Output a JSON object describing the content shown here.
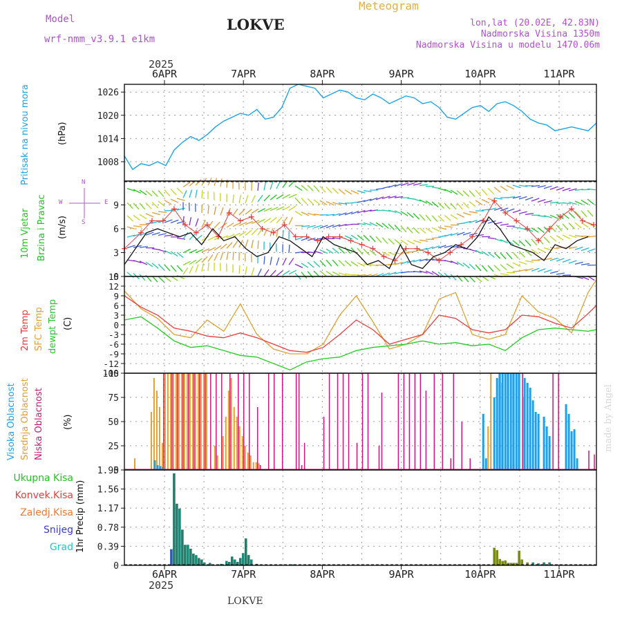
{
  "header": {
    "model_label": "Model",
    "model_name": "wrf-nmm_v3.9.1 e1km",
    "title": "LOKVE",
    "product": "Meteogram",
    "lonlat": "lon,lat (20.02E, 42.83N)",
    "elevation": "Nadmorska Visina 1350m",
    "model_elevation": "Nadmorska Visina u modelu 1470.06m",
    "watermark": "made by Angel",
    "footer": "LOKVE"
  },
  "colors": {
    "pressure": "#1aa3e6",
    "wind_label": "#1fc41f",
    "temp2m": "#e83c3c",
    "sfc": "#e0a030",
    "dew": "#22cc22",
    "high_cloud": "#1fa0e6",
    "mid_cloud": "#e0a030",
    "low_cloud": "#c8187a",
    "rain_total": "#1fc41f",
    "rain_conv": "#e83c3c",
    "freezing": "#f07830",
    "snow": "#3a3ad0",
    "hail": "#20c8c8",
    "precip_bar": "#1a8a7a",
    "precip_bar2": "#7a8a1a"
  },
  "time_axis": {
    "top_year": "2025",
    "bottom_year": "2025",
    "dates": [
      "6APR",
      "7APR",
      "8APR",
      "9APR",
      "10APR",
      "11APR"
    ]
  },
  "panels": {
    "pressure": {
      "label": "Pritisak na nivou mora",
      "unit": "(hPa)"
    },
    "wind": {
      "label1": "10m Vjetar",
      "label2": "Brzina i Pravac",
      "unit": "(m/s)",
      "compass_w": "W",
      "compass_e": "E",
      "compass_n": "N",
      "compass_s": "S"
    },
    "temp": {
      "label1": "2m Temp",
      "label2": "SFC Temp",
      "label3": "dewpt Temp",
      "unit": "(C)"
    },
    "cloud": {
      "label1": "Visoka Oblacnost",
      "label2": "Srednja Oblacnost",
      "label3": "Niska Oblacnost",
      "unit": "(%)"
    },
    "precip": {
      "legend": [
        "Ukupna Kisa",
        "Konvek.Kisa",
        "Zaledj.Kisa",
        "Snijeg",
        "Grad"
      ],
      "unit": "1hr Precip (mm)"
    }
  },
  "chart_data": [
    {
      "type": "line",
      "title": "Pritisak na nivou mora",
      "ylabel": "(hPa)",
      "ylim": [
        1003,
        1028
      ],
      "yticks": [
        1008,
        1014,
        1020,
        1026
      ],
      "x_hours": [
        0,
        3,
        6,
        9,
        12,
        15,
        18,
        21,
        24,
        27,
        30,
        33,
        36,
        39,
        42,
        45,
        48,
        51,
        54,
        57,
        60,
        63,
        66,
        69,
        72,
        75,
        78,
        81,
        84,
        87,
        90,
        93,
        96,
        99,
        102,
        105,
        108,
        111,
        114,
        117,
        120,
        123,
        126,
        129,
        132,
        135,
        138,
        141,
        144,
        147,
        150,
        153,
        156,
        159,
        162,
        165,
        168,
        171
      ],
      "values": [
        1009.5,
        1006,
        1007.5,
        1007,
        1008,
        1007,
        1011,
        1013,
        1014.5,
        1013.5,
        1015,
        1017,
        1018.5,
        1019.5,
        1020.5,
        1020,
        1021.5,
        1019,
        1019.5,
        1022,
        1027,
        1028,
        1027.5,
        1027,
        1024.5,
        1025.5,
        1026.5,
        1026,
        1024.5,
        1024,
        1025.5,
        1024.5,
        1023,
        1024,
        1025,
        1024.5,
        1023,
        1023.5,
        1022,
        1019.5,
        1019,
        1020.5,
        1022,
        1022.5,
        1021,
        1023,
        1023.5,
        1022.5,
        1021,
        1019,
        1018,
        1017.5,
        1016,
        1016.5,
        1017,
        1016.5,
        1016,
        1018
      ]
    },
    {
      "type": "line",
      "title": "10m Vjetar Brzina i Pravac",
      "ylabel": "(m/s)",
      "ylim": [
        0,
        12
      ],
      "yticks": [
        0,
        3,
        6,
        9
      ],
      "series": [
        {
          "name": "speed",
          "x_hours": [
            0,
            4,
            8,
            12,
            16,
            20,
            24,
            28,
            32,
            36,
            40,
            44,
            48,
            52,
            56,
            60,
            64,
            68,
            72,
            76,
            80,
            84,
            88,
            92,
            96,
            100,
            104,
            108,
            112,
            116,
            120,
            124,
            128,
            132,
            136,
            140,
            144,
            148,
            152,
            156,
            160,
            164,
            168
          ],
          "values": [
            1.5,
            3.5,
            5.5,
            6.0,
            5.5,
            5.0,
            5.5,
            4.0,
            6.0,
            4.5,
            5.0,
            3.5,
            2.5,
            3.0,
            5.0,
            4.5,
            3.5,
            2.5,
            5.0,
            4.0,
            3.5,
            3.0,
            1.5,
            2.0,
            1.0,
            4.0,
            1.5,
            1.0,
            2.5,
            3.0,
            4.0,
            3.5,
            5.0,
            7.5,
            6.0,
            4.0,
            3.5,
            3.0,
            2.0,
            4.0,
            3.5,
            4.5,
            5.0
          ]
        },
        {
          "name": "gust",
          "x_hours": [
            0,
            6,
            10,
            14,
            18,
            22,
            26,
            30,
            34,
            38,
            42,
            46,
            50,
            54,
            58,
            62,
            66,
            70,
            74,
            78,
            82,
            86,
            90,
            94,
            98,
            102,
            106,
            110,
            114,
            118,
            122,
            126,
            130,
            134,
            138,
            142,
            146,
            150,
            154,
            158,
            162,
            166,
            170
          ],
          "values": [
            3.5,
            5.5,
            7.0,
            7.0,
            8.5,
            6.5,
            5.5,
            6.5,
            5.0,
            8.0,
            7.0,
            7.5,
            6.0,
            5.5,
            6.5,
            5.0,
            5.0,
            4.5,
            5.0,
            5.0,
            4.5,
            4.0,
            3.5,
            2.5,
            2.0,
            3.5,
            3.5,
            3.0,
            2.0,
            3.0,
            4.0,
            5.0,
            7.0,
            9.5,
            8.0,
            7.0,
            6.0,
            4.5,
            6.0,
            7.5,
            8.5,
            7.0,
            6.5
          ]
        }
      ]
    },
    {
      "type": "line",
      "title": "2m Temp / SFC Temp / dewpt Temp",
      "ylabel": "(C)",
      "ylim": [
        -15,
        15
      ],
      "yticks": [
        -15,
        -12,
        -9,
        -6,
        -3,
        0,
        3,
        6,
        9,
        12,
        15
      ],
      "series": [
        {
          "name": "2m Temp",
          "x_hours": [
            0,
            6,
            12,
            18,
            24,
            30,
            36,
            42,
            48,
            54,
            60,
            66,
            72,
            78,
            84,
            90,
            96,
            102,
            108,
            114,
            120,
            126,
            132,
            138,
            144,
            150,
            156,
            162,
            168,
            171
          ],
          "values": [
            9,
            5.5,
            3,
            -1,
            -2,
            -3.5,
            -4,
            -2.5,
            -4,
            -6,
            -8,
            -8.5,
            -7,
            -3,
            1.5,
            -1.5,
            -6,
            -4.5,
            -3,
            3,
            2,
            -1.5,
            -2.5,
            -1.5,
            3,
            2.5,
            0.5,
            -1,
            3.5,
            6
          ]
        },
        {
          "name": "SFC Temp",
          "x_hours": [
            0,
            6,
            12,
            18,
            24,
            30,
            36,
            42,
            48,
            54,
            60,
            66,
            72,
            78,
            84,
            90,
            96,
            102,
            108,
            114,
            120,
            126,
            132,
            138,
            144,
            150,
            156,
            162,
            168,
            171
          ],
          "values": [
            10.5,
            5,
            2,
            -3,
            -4,
            1.5,
            -2,
            6.5,
            -3,
            -7.5,
            -9,
            -9,
            -6,
            3,
            9,
            1,
            -7.5,
            -6,
            -3,
            8,
            10,
            -3,
            -4.5,
            -3,
            9,
            4,
            2,
            -2.5,
            10,
            14
          ]
        },
        {
          "name": "dewpt Temp",
          "x_hours": [
            0,
            6,
            12,
            18,
            24,
            30,
            36,
            42,
            48,
            54,
            60,
            66,
            72,
            78,
            84,
            90,
            96,
            102,
            108,
            114,
            120,
            126,
            132,
            138,
            144,
            150,
            156,
            162,
            168,
            171
          ],
          "values": [
            1.5,
            2.5,
            -1,
            -5,
            -7,
            -6.5,
            -8,
            -9.5,
            -10,
            -12,
            -14,
            -11.5,
            -10.5,
            -10,
            -8,
            -7,
            -6.5,
            -6,
            -5,
            -6,
            -5.5,
            -6.5,
            -6,
            -8,
            -4,
            -1.5,
            -1,
            -1.5,
            -2,
            -1.5
          ]
        }
      ]
    },
    {
      "type": "bar",
      "title": "Visoka / Srednja / Niska Oblacnost",
      "ylabel": "(%)",
      "ylim": [
        0,
        100
      ],
      "yticks": [
        0,
        25,
        50,
        75,
        100
      ],
      "series": [
        {
          "name": "Visoka Oblacnost",
          "x_hours": [
            11,
            12,
            13,
            14,
            130,
            131,
            134,
            135,
            136,
            137,
            138,
            139,
            140,
            141,
            142,
            143,
            145,
            146,
            147,
            148,
            149,
            150,
            152,
            153,
            154,
            160,
            161,
            162,
            163,
            164
          ],
          "values": [
            10,
            5,
            4,
            3,
            58,
            12,
            75,
            95,
            100,
            100,
            100,
            100,
            100,
            100,
            100,
            100,
            95,
            90,
            85,
            72,
            60,
            58,
            55,
            45,
            35,
            68,
            58,
            40,
            42,
            12
          ]
        },
        {
          "name": "Srednja Oblacnost",
          "x_hours": [
            4,
            10,
            11,
            12,
            13,
            14,
            15,
            16,
            17,
            18,
            19,
            20,
            21,
            22,
            23,
            24,
            25,
            26,
            27,
            28,
            29,
            30,
            33,
            34,
            36,
            37,
            38,
            39,
            40,
            41,
            42,
            43,
            44,
            45,
            46,
            47,
            48,
            49,
            132,
            133,
            136,
            137,
            139,
            141,
            143,
            145
          ],
          "values": [
            12,
            60,
            95,
            82,
            65,
            28,
            100,
            100,
            100,
            100,
            100,
            100,
            100,
            100,
            100,
            100,
            100,
            100,
            100,
            100,
            100,
            100,
            25,
            15,
            35,
            55,
            82,
            95,
            65,
            55,
            45,
            35,
            25,
            18,
            15,
            8,
            8,
            7,
            45,
            100,
            100,
            90,
            100,
            100,
            100,
            75
          ]
        },
        {
          "name": "Niska Oblacnost",
          "x_hours": [
            14,
            17,
            19,
            21,
            23,
            25,
            27,
            29,
            31,
            33,
            35,
            38,
            41,
            43,
            45,
            48,
            49,
            52,
            54,
            57,
            62,
            63,
            64,
            65,
            72,
            74,
            77,
            79,
            81,
            84,
            86,
            88,
            92,
            93,
            99,
            101,
            103,
            105,
            107,
            109,
            112,
            115,
            118,
            119,
            122,
            125,
            144,
            155,
            157,
            168,
            170
          ],
          "values": [
            100,
            100,
            100,
            100,
            100,
            100,
            100,
            100,
            100,
            100,
            100,
            100,
            100,
            100,
            100,
            65,
            5,
            100,
            100,
            100,
            100,
            100,
            5,
            28,
            55,
            100,
            100,
            100,
            100,
            28,
            100,
            100,
            25,
            80,
            100,
            100,
            100,
            100,
            100,
            82,
            100,
            100,
            12,
            100,
            50,
            12,
            100,
            100,
            100,
            20,
            16
          ]
        }
      ]
    },
    {
      "type": "bar",
      "title": "1hr Precip",
      "ylabel": "1hr Precip (mm)",
      "ylim": [
        0,
        1.95
      ],
      "yticks": [
        0,
        0.39,
        0.78,
        1.17,
        1.56,
        1.95
      ],
      "series": [
        {
          "name": "Ukupna Kisa",
          "x_hours": [
            17,
            18,
            19,
            20,
            21,
            22,
            23,
            24,
            25,
            26,
            27,
            28,
            29,
            31,
            35,
            37,
            38,
            39,
            40,
            41,
            42,
            43,
            44,
            45,
            46,
            48,
            61,
            134,
            135,
            136,
            137,
            138,
            139,
            140,
            141,
            142,
            143,
            144,
            146,
            148,
            150,
            152,
            154
          ],
          "values": [
            0.33,
            1.88,
            1.26,
            1.16,
            0.73,
            0.42,
            0.42,
            0.34,
            0.24,
            0.21,
            0.15,
            0.12,
            0.06,
            0.05,
            0.03,
            0.09,
            0.07,
            0.18,
            0.12,
            0.07,
            0.15,
            0.25,
            0.55,
            0.21,
            0.12,
            0.03,
            0.02,
            0.36,
            0.31,
            0.13,
            0.09,
            0.1,
            0.05,
            0.05,
            0.05,
            0.05,
            0.3,
            0.12,
            0.06,
            0.06,
            0.04,
            0.06,
            0.06
          ]
        }
      ]
    }
  ]
}
